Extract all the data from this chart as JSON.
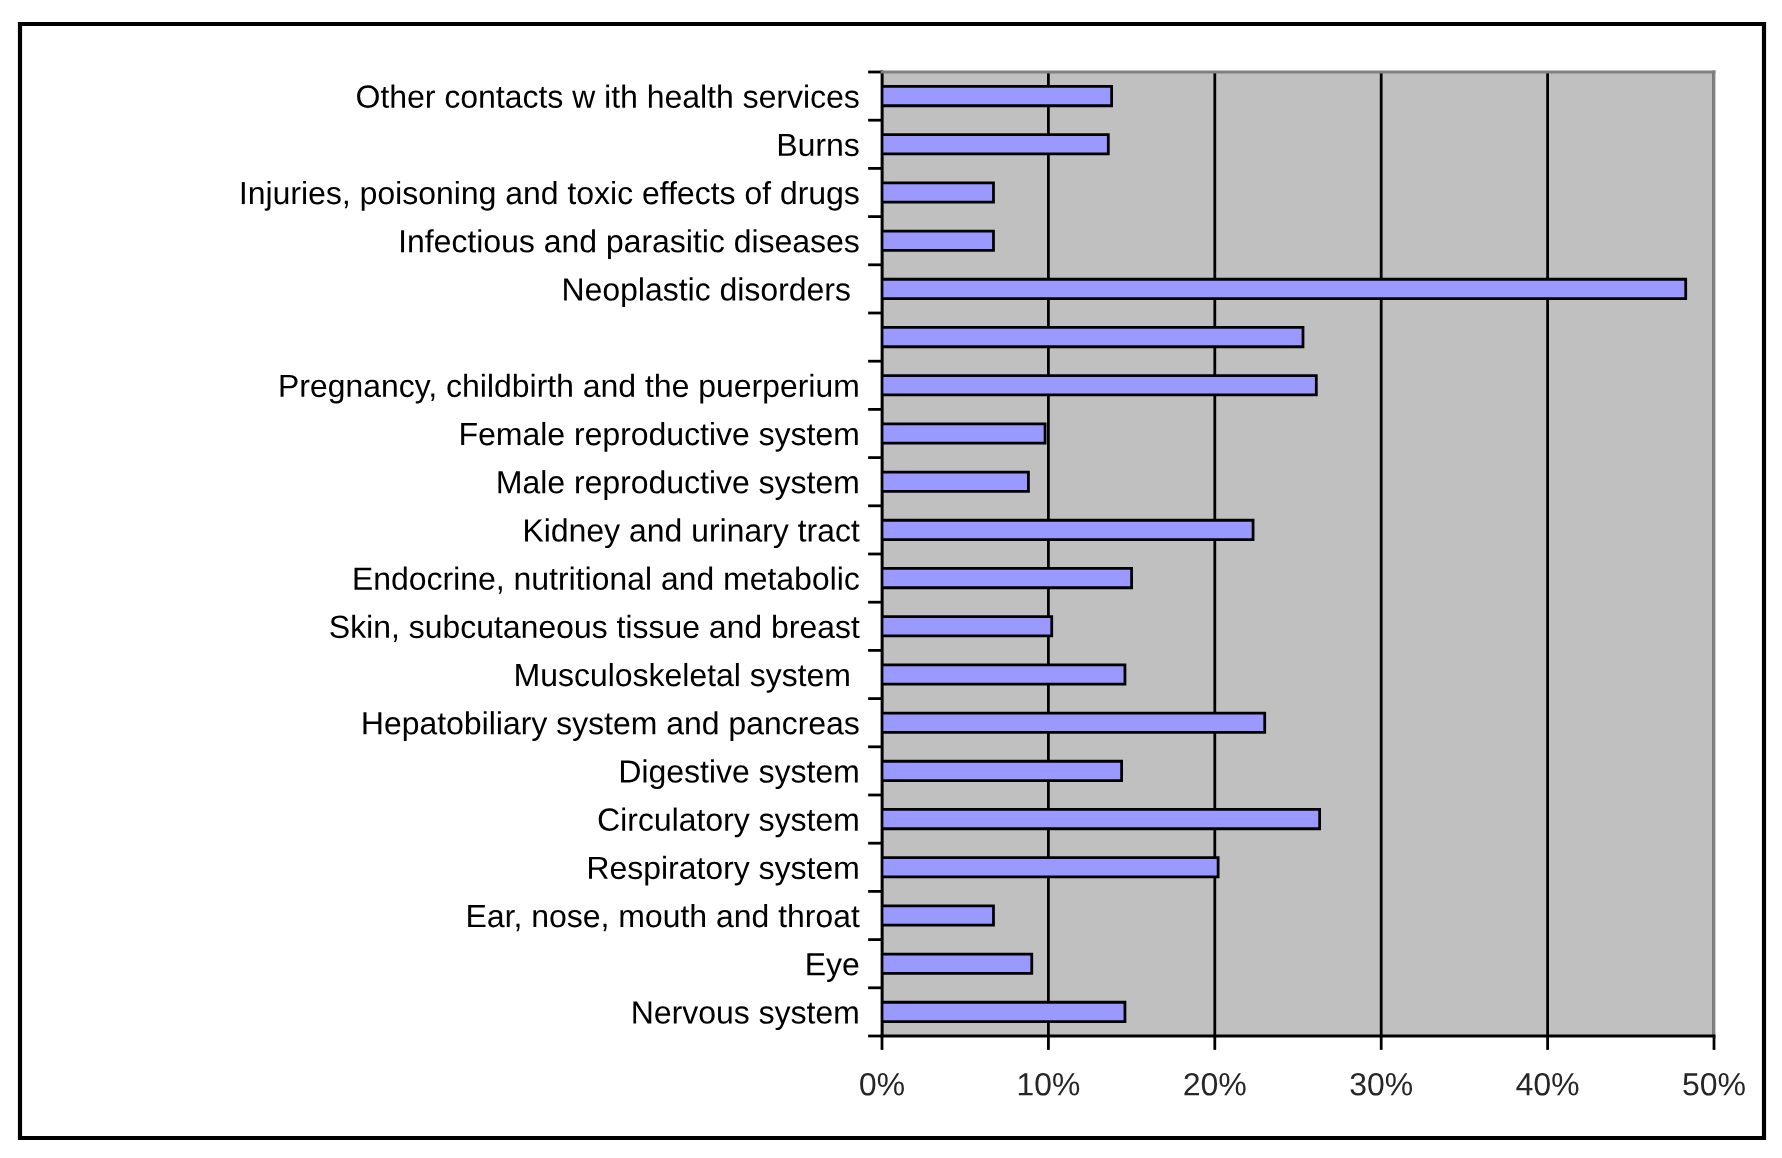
{
  "chart_data": {
    "type": "bar",
    "orientation": "horizontal",
    "categories": [
      "Other contacts w ith health services",
      "Burns",
      "Injuries, poisoning and toxic effects of drugs",
      "Infectious and parasitic diseases",
      "Neoplastic disorders ",
      null,
      "Pregnancy, childbirth and the puerperium",
      "Female reproductive system",
      "Male reproductive system",
      "Kidney and urinary tract",
      "Endocrine, nutritional and metabolic",
      "Skin, subcutaneous tissue and breast",
      "Musculoskeletal system ",
      "Hepatobiliary system and pancreas",
      "Digestive system",
      "Circulatory system",
      "Respiratory system",
      "Ear, nose, mouth and throat",
      "Eye",
      "Nervous system"
    ],
    "values": [
      13.8,
      13.6,
      6.7,
      6.7,
      48.3,
      25.3,
      26.1,
      9.8,
      8.8,
      22.3,
      15.0,
      10.2,
      14.6,
      23.0,
      14.4,
      26.3,
      20.2,
      6.7,
      9.0,
      14.6
    ],
    "color": "#9999ff",
    "xlim": [
      0,
      50
    ],
    "xticks": [
      {
        "value": 0,
        "label": "0%"
      },
      {
        "value": 10,
        "label": "10%"
      },
      {
        "value": 20,
        "label": "20%"
      },
      {
        "value": 30,
        "label": "30%"
      },
      {
        "value": 40,
        "label": "40%"
      },
      {
        "value": 50,
        "label": "50%"
      }
    ],
    "grid": "x"
  }
}
